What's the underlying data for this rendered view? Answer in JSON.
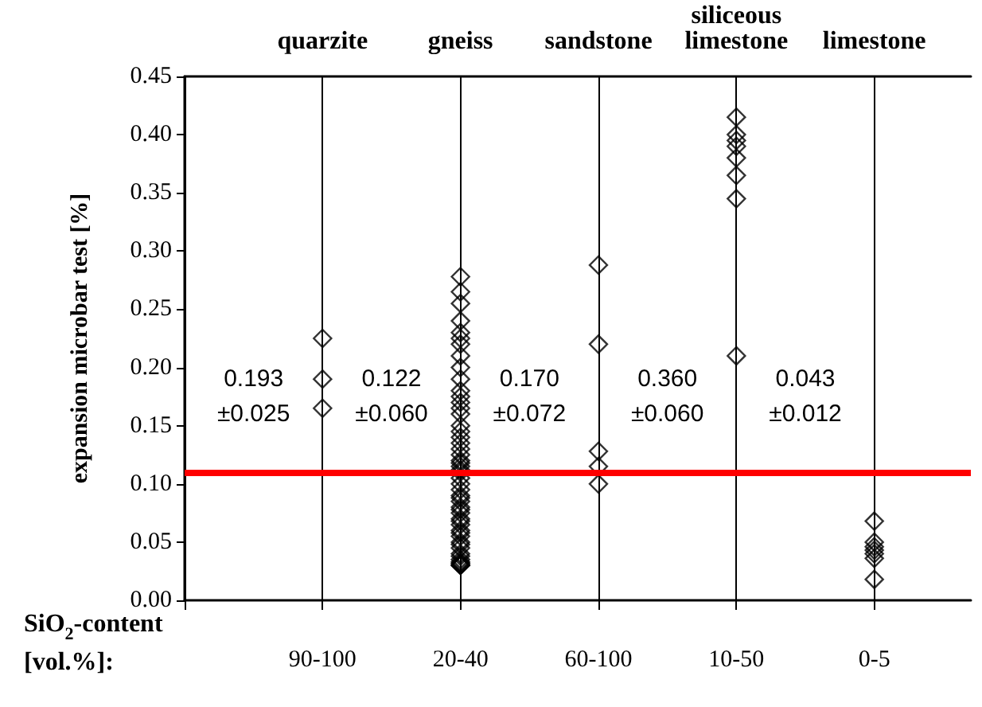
{
  "chart_data": {
    "type": "scatter",
    "xlabel": "SiO$_{2}$-content\n[vol.%]:",
    "ylabel": "expansion microbar test [%]",
    "categories": [
      "90-100",
      "20-40",
      "60-100",
      "10-50",
      "0-5"
    ],
    "ylim": [
      0,
      0.45
    ],
    "yticks": [
      {
        "value": 0,
        "label": "0.00"
      },
      {
        "value": 0.05,
        "label": "0.05"
      },
      {
        "value": 0.1,
        "label": "0.10"
      },
      {
        "value": 0.15,
        "label": "0.15"
      },
      {
        "value": 0.2,
        "label": "0.20"
      },
      {
        "value": 0.25,
        "label": "0.25"
      },
      {
        "value": 0.3,
        "label": "0.30"
      },
      {
        "value": 0.35,
        "label": "0.35"
      },
      {
        "value": 0.4,
        "label": "0.40"
      },
      {
        "value": 0.45,
        "label": "0.45"
      }
    ],
    "grid": "x",
    "marker": "diamond",
    "series": [
      {
        "color": "#000000",
        "x": [
          "90-100",
          "90-100",
          "90-100",
          "20-40",
          "20-40",
          "20-40",
          "20-40",
          "20-40",
          "20-40",
          "20-40",
          "20-40",
          "20-40",
          "20-40",
          "20-40",
          "20-40",
          "20-40",
          "20-40",
          "20-40",
          "20-40",
          "20-40",
          "20-40",
          "20-40",
          "20-40",
          "20-40",
          "20-40",
          "20-40",
          "20-40",
          "20-40",
          "20-40",
          "20-40",
          "20-40",
          "20-40",
          "20-40",
          "20-40",
          "20-40",
          "20-40",
          "20-40",
          "20-40",
          "20-40",
          "20-40",
          "20-40",
          "20-40",
          "20-40",
          "20-40",
          "20-40",
          "20-40",
          "20-40",
          "20-40",
          "20-40",
          "20-40",
          "20-40",
          "20-40",
          "20-40",
          "20-40",
          "20-40",
          "60-100",
          "60-100",
          "60-100",
          "60-100",
          "60-100",
          "10-50",
          "10-50",
          "10-50",
          "10-50",
          "10-50",
          "10-50",
          "10-50",
          "10-50",
          "0-5",
          "0-5",
          "0-5",
          "0-5",
          "0-5",
          "0-5",
          "0-5"
        ],
        "values": [
          0.225,
          0.19,
          0.165,
          0.278,
          0.265,
          0.255,
          0.24,
          0.23,
          0.225,
          0.22,
          0.21,
          0.2,
          0.19,
          0.18,
          0.175,
          0.17,
          0.165,
          0.16,
          0.15,
          0.145,
          0.14,
          0.135,
          0.13,
          0.125,
          0.12,
          0.118,
          0.115,
          0.112,
          0.11,
          0.105,
          0.1,
          0.095,
          0.09,
          0.088,
          0.085,
          0.08,
          0.078,
          0.075,
          0.07,
          0.068,
          0.065,
          0.06,
          0.058,
          0.055,
          0.05,
          0.048,
          0.045,
          0.04,
          0.038,
          0.035,
          0.033,
          0.032,
          0.031,
          0.03,
          0.03,
          0.288,
          0.22,
          0.128,
          0.115,
          0.1,
          0.415,
          0.4,
          0.395,
          0.39,
          0.38,
          0.365,
          0.345,
          0.21,
          0.068,
          0.05,
          0.046,
          0.043,
          0.04,
          0.036,
          0.018
        ]
      }
    ],
    "ref_lines": [
      {
        "axis": "y",
        "value": 0.11,
        "color": "#ff0000"
      }
    ],
    "annotations": [
      "quarzite",
      "gneiss",
      "sandstone",
      "siliceous\nlimestone",
      "limestone",
      "0.193\n±0.025",
      "0.122\n±0.060",
      "0.170\n±0.072",
      "0.360\n±0.060",
      "0.043\n±0.012"
    ]
  }
}
